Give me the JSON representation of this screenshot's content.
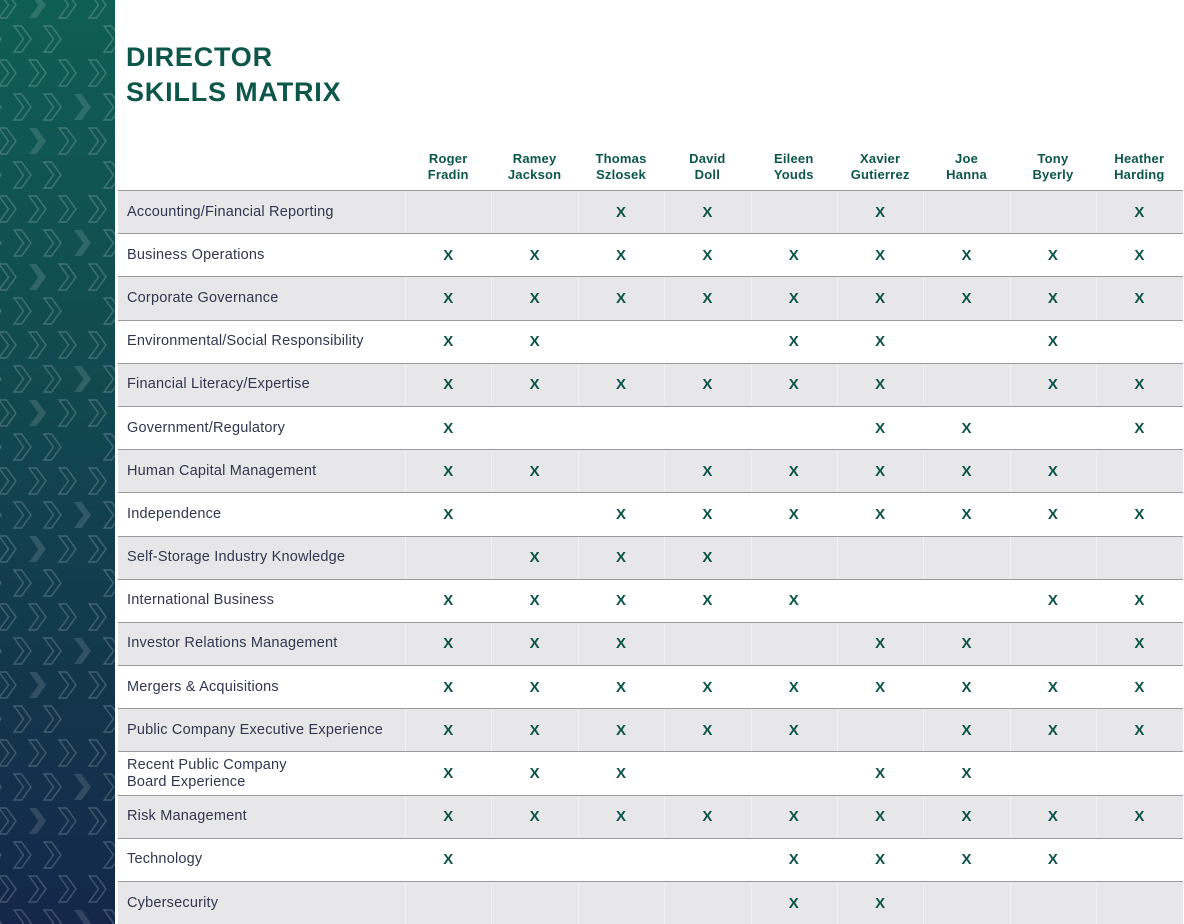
{
  "page": {
    "title": "DIRECTOR\nSKILLS MATRIX"
  },
  "colors": {
    "accent_teal": "#0C564A",
    "mark_teal": "#0C5348",
    "sidebar_top": "#0F5E53",
    "sidebar_bottom": "#14274A",
    "row_stripe": "#E7E7E9",
    "row_border": "#9B9B9B",
    "label_navy": "#30374F"
  },
  "matrix": {
    "mark_symbol": "X",
    "directors": [
      "Roger\nFradin",
      "Ramey\nJackson",
      "Thomas\nSzlosek",
      "David\nDoll",
      "Eileen\nYouds",
      "Xavier\nGutierrez",
      "Joe\nHanna",
      "Tony\nByerly",
      "Heather\nHarding"
    ],
    "skills": [
      {
        "label": "Accounting/Financial Reporting",
        "marks": [
          0,
          0,
          1,
          1,
          0,
          1,
          0,
          0,
          1
        ]
      },
      {
        "label": "Business Operations",
        "marks": [
          1,
          1,
          1,
          1,
          1,
          1,
          1,
          1,
          1
        ]
      },
      {
        "label": "Corporate Governance",
        "marks": [
          1,
          1,
          1,
          1,
          1,
          1,
          1,
          1,
          1
        ]
      },
      {
        "label": "Environmental/Social Responsibility",
        "marks": [
          1,
          1,
          0,
          0,
          1,
          1,
          0,
          1,
          0
        ]
      },
      {
        "label": "Financial Literacy/Expertise",
        "marks": [
          1,
          1,
          1,
          1,
          1,
          1,
          0,
          1,
          1
        ]
      },
      {
        "label": "Government/Regulatory",
        "marks": [
          1,
          0,
          0,
          0,
          0,
          1,
          1,
          0,
          1
        ]
      },
      {
        "label": "Human Capital Management",
        "marks": [
          1,
          1,
          0,
          1,
          1,
          1,
          1,
          1,
          0
        ]
      },
      {
        "label": "Independence",
        "marks": [
          1,
          0,
          1,
          1,
          1,
          1,
          1,
          1,
          1
        ]
      },
      {
        "label": "Self-Storage Industry Knowledge",
        "marks": [
          0,
          1,
          1,
          1,
          0,
          0,
          0,
          0,
          0
        ]
      },
      {
        "label": "International Business",
        "marks": [
          1,
          1,
          1,
          1,
          1,
          0,
          0,
          1,
          1
        ]
      },
      {
        "label": "Investor Relations Management",
        "marks": [
          1,
          1,
          1,
          0,
          0,
          1,
          1,
          0,
          1
        ]
      },
      {
        "label": "Mergers & Acquisitions",
        "marks": [
          1,
          1,
          1,
          1,
          1,
          1,
          1,
          1,
          1
        ]
      },
      {
        "label": "Public Company Executive Experience",
        "marks": [
          1,
          1,
          1,
          1,
          1,
          0,
          1,
          1,
          1
        ]
      },
      {
        "label": "Recent Public Company\nBoard Experience",
        "marks": [
          1,
          1,
          1,
          0,
          0,
          1,
          1,
          0,
          0
        ]
      },
      {
        "label": "Risk Management",
        "marks": [
          1,
          1,
          1,
          1,
          1,
          1,
          1,
          1,
          1
        ]
      },
      {
        "label": "Technology",
        "marks": [
          1,
          0,
          0,
          0,
          1,
          1,
          1,
          1,
          0
        ]
      },
      {
        "label": "Cybersecurity",
        "marks": [
          0,
          0,
          0,
          0,
          1,
          1,
          0,
          0,
          0
        ]
      }
    ]
  }
}
